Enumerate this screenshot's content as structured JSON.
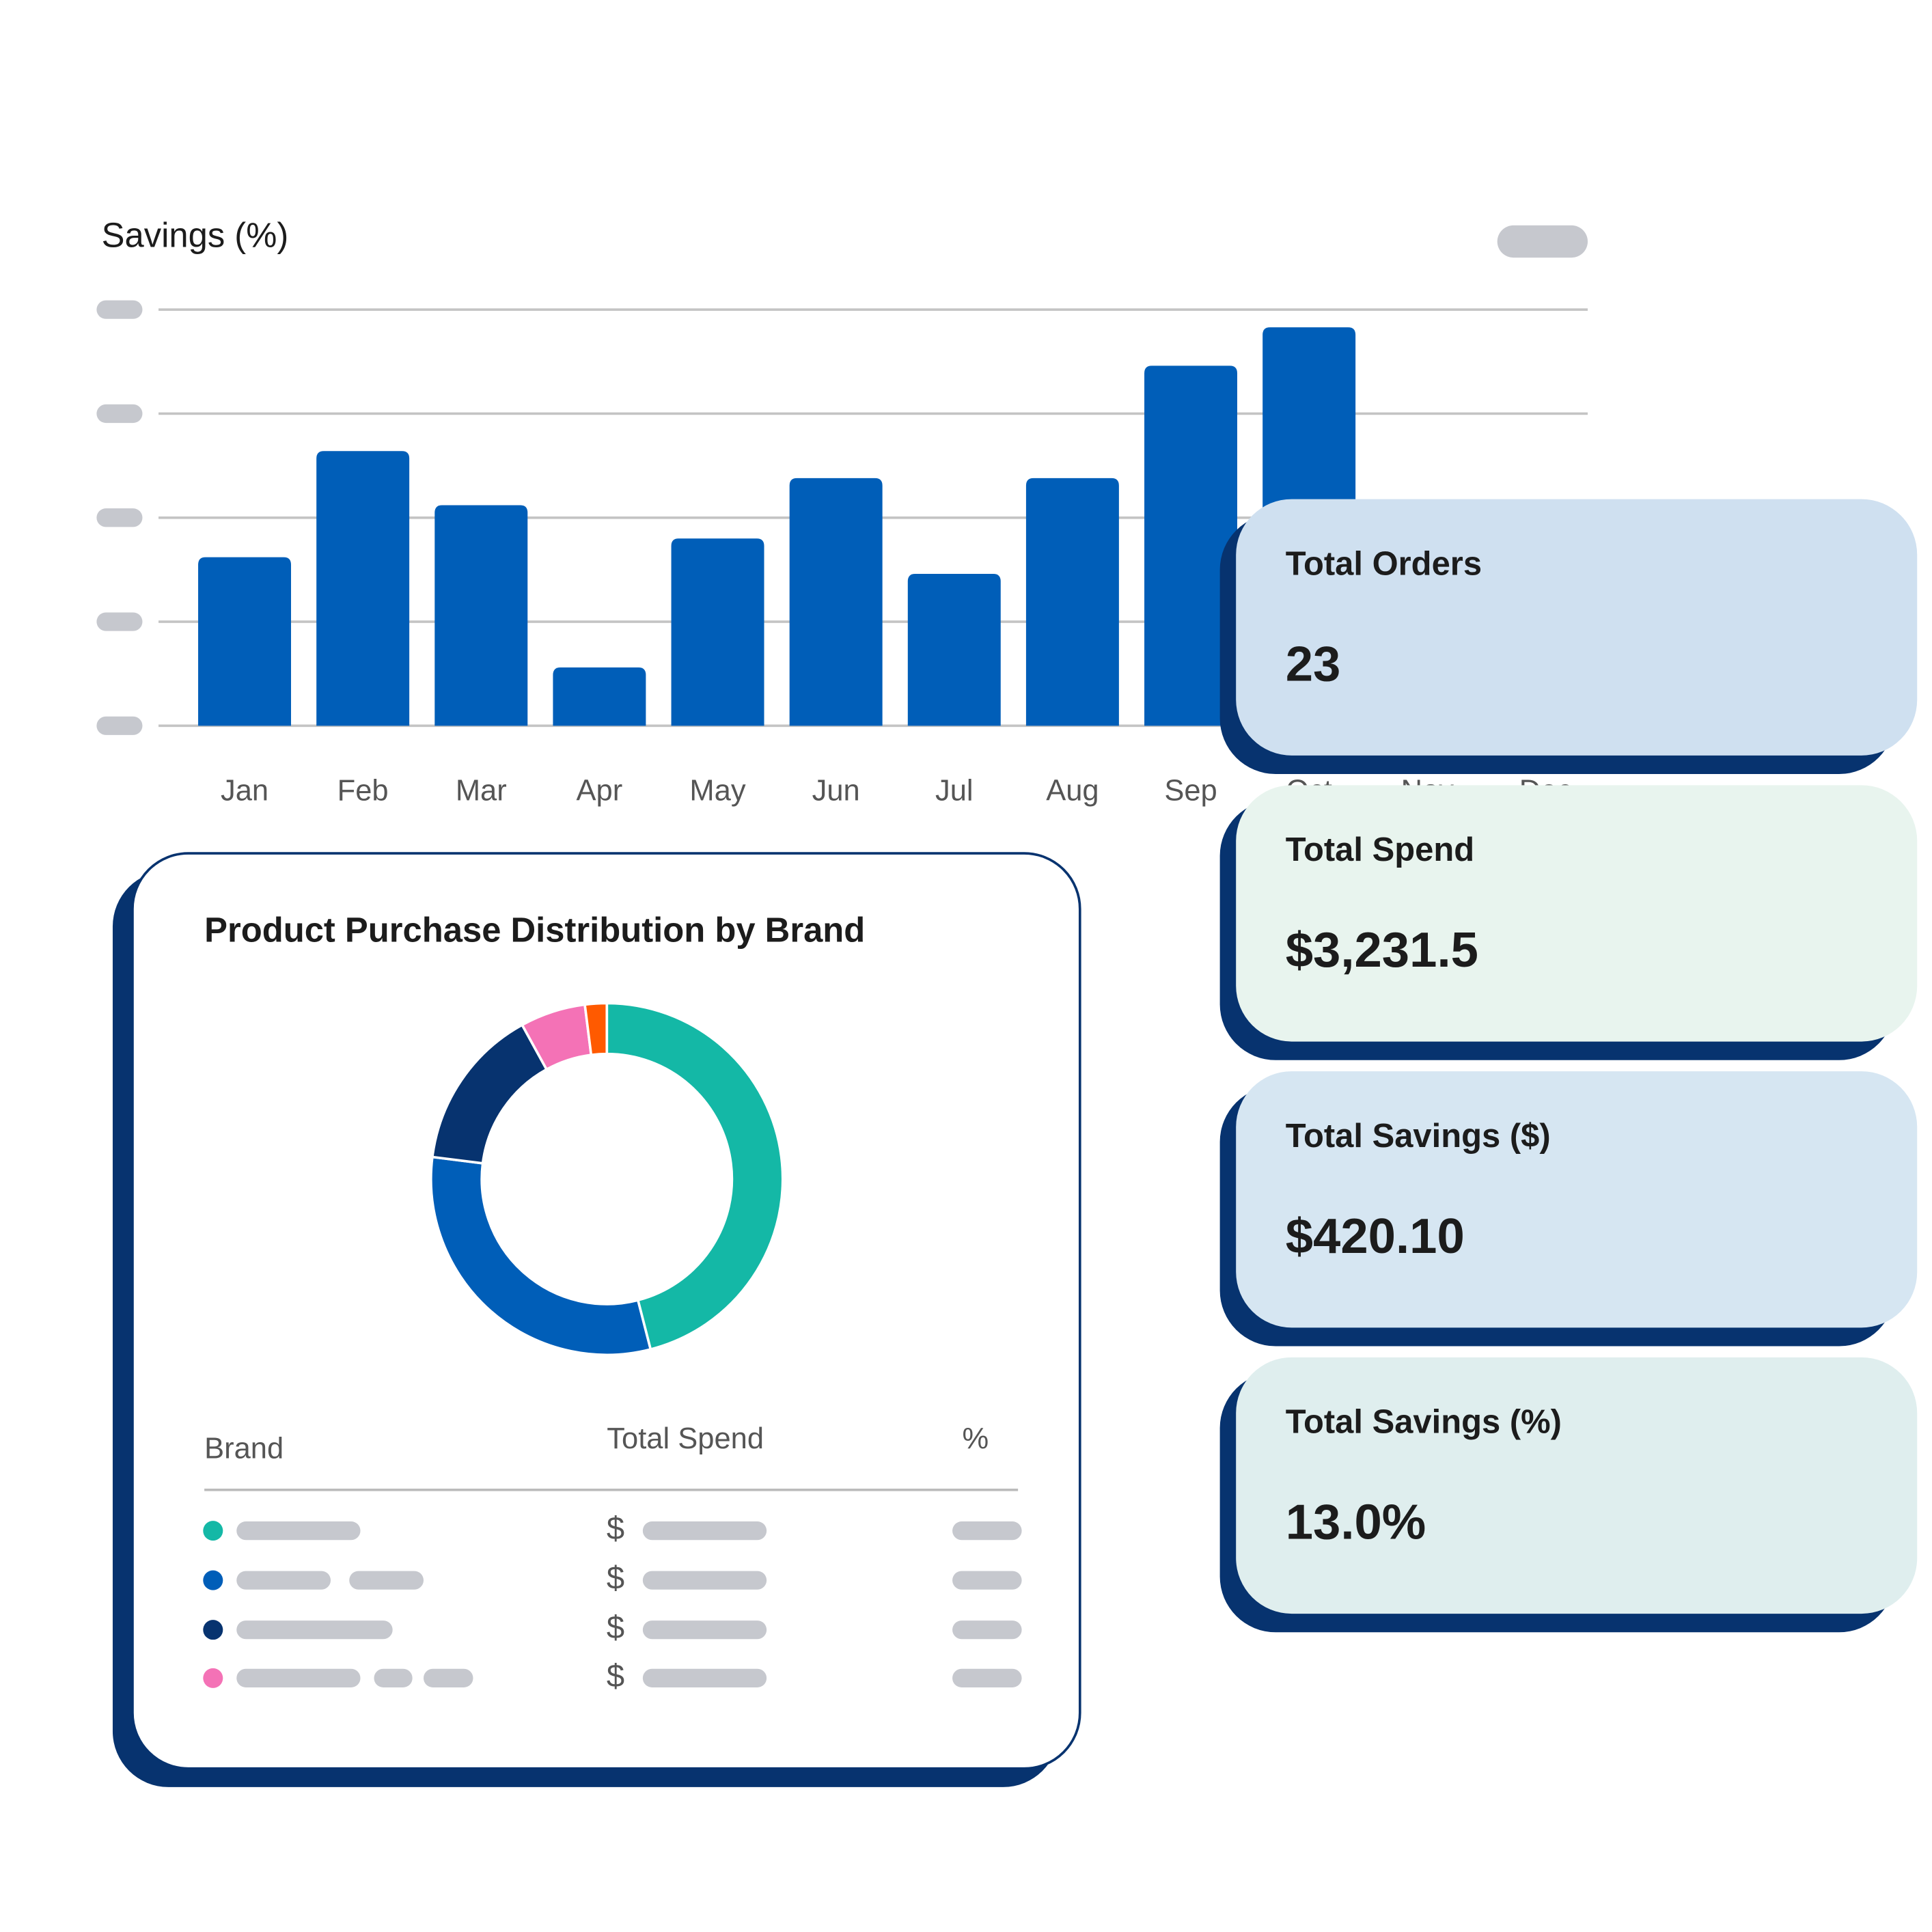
{
  "chart_data": [
    {
      "type": "bar",
      "title": "Savings (%)",
      "categories": [
        "Jan",
        "Feb",
        "Mar",
        "Apr",
        "May",
        "Jun",
        "Jul",
        "Aug",
        "Sep",
        "Oct",
        "Nov",
        "Dec"
      ],
      "values": [
        1.62,
        2.64,
        2.12,
        0.56,
        1.8,
        2.38,
        1.46,
        2.38,
        3.46,
        3.83,
        null,
        null
      ],
      "color": "#005eb8",
      "ylim": [
        0,
        4
      ],
      "yticks": [
        0,
        1,
        2,
        3,
        4
      ],
      "grid": true
    },
    {
      "type": "donut",
      "title": "Product Purchase Distribution by Brand",
      "values": [
        46,
        31,
        15,
        6,
        2
      ],
      "colors": [
        "#14b8a6",
        "#005eb8",
        "#07336f",
        "#f472b6",
        "#ff5a00"
      ]
    }
  ],
  "table": {
    "headers": [
      "Brand",
      "Total Spend",
      "%"
    ],
    "rows": [
      {
        "currency": "$"
      },
      {
        "currency": "$"
      },
      {
        "currency": "$"
      },
      {
        "currency": "$"
      }
    ]
  },
  "cards": [
    {
      "label": "Total Orders",
      "value": "23",
      "color": "#cfe0f0"
    },
    {
      "label": "Total Spend",
      "value": "$3,231.5",
      "color": "#e8f4ee"
    },
    {
      "label": "Total Savings ($)",
      "value": "$420.10",
      "color": "#d6e6f2"
    },
    {
      "label": "Total Savings (%)",
      "value": "13.0%",
      "color": "#dfeeee"
    }
  ]
}
